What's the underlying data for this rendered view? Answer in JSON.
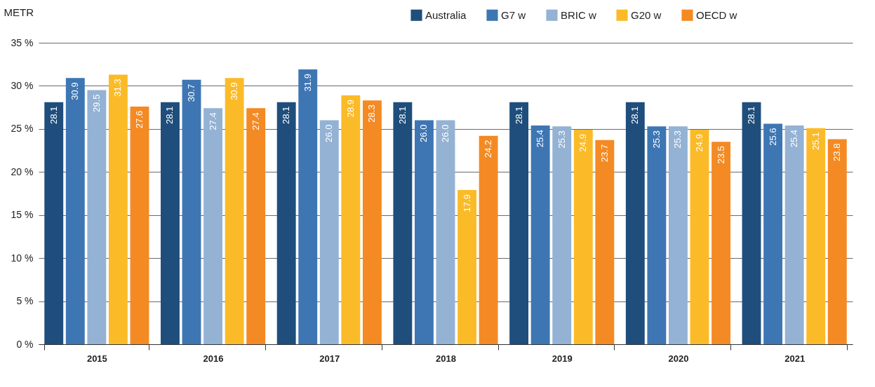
{
  "chart_data": {
    "type": "bar",
    "ylabel": "METR",
    "categories": [
      "2015",
      "2016",
      "2017",
      "2018",
      "2019",
      "2020",
      "2021"
    ],
    "series": [
      {
        "name": "Australia",
        "color": "#1f4e7c",
        "values": [
          28.1,
          28.1,
          28.1,
          28.1,
          28.1,
          28.1,
          28.1
        ],
        "value_labels": [
          "28.1",
          "28.1",
          "28.1",
          "28.1",
          "28.1",
          "28.1",
          "28.1"
        ]
      },
      {
        "name": "G7 w",
        "color": "#3e76b4",
        "values": [
          30.9,
          30.7,
          31.9,
          26.0,
          25.4,
          25.3,
          25.6
        ],
        "value_labels": [
          "30.9",
          "30.7",
          "31.9",
          "26.0",
          "25.4",
          "25.3",
          "25.6"
        ]
      },
      {
        "name": "BRIC w",
        "color": "#94b2d4",
        "values": [
          29.5,
          27.4,
          26.0,
          26.0,
          25.3,
          25.3,
          25.4
        ],
        "value_labels": [
          "29.5",
          "27.4",
          "26.0",
          "26.0",
          "25.3",
          "25.3",
          "25.4"
        ]
      },
      {
        "name": "G20 w",
        "color": "#fbbb28",
        "values": [
          31.3,
          30.9,
          28.9,
          17.9,
          24.9,
          24.9,
          25.1
        ],
        "value_labels": [
          "31.3",
          "30.9",
          "28.9",
          "17.9",
          "24.9",
          "24.9",
          "25.1"
        ]
      },
      {
        "name": "OECD w",
        "color": "#f48a23",
        "values": [
          27.6,
          27.4,
          28.3,
          24.2,
          23.7,
          23.5,
          23.8
        ],
        "value_labels": [
          "27.6",
          "27.4",
          "28.3",
          "24.2",
          "23.7",
          "23.5",
          "23.8"
        ]
      }
    ],
    "ylim": [
      0,
      35
    ],
    "yticks": [
      {
        "value": 0,
        "label": "0 %"
      },
      {
        "value": 5,
        "label": "5 %"
      },
      {
        "value": 10,
        "label": "10 %"
      },
      {
        "value": 15,
        "label": "15 %"
      },
      {
        "value": 20,
        "label": "20 %"
      },
      {
        "value": 25,
        "label": "25 %"
      },
      {
        "value": 30,
        "label": "30 %"
      },
      {
        "value": 35,
        "label": "35 %"
      }
    ],
    "grid": "y",
    "legend": "top right"
  }
}
